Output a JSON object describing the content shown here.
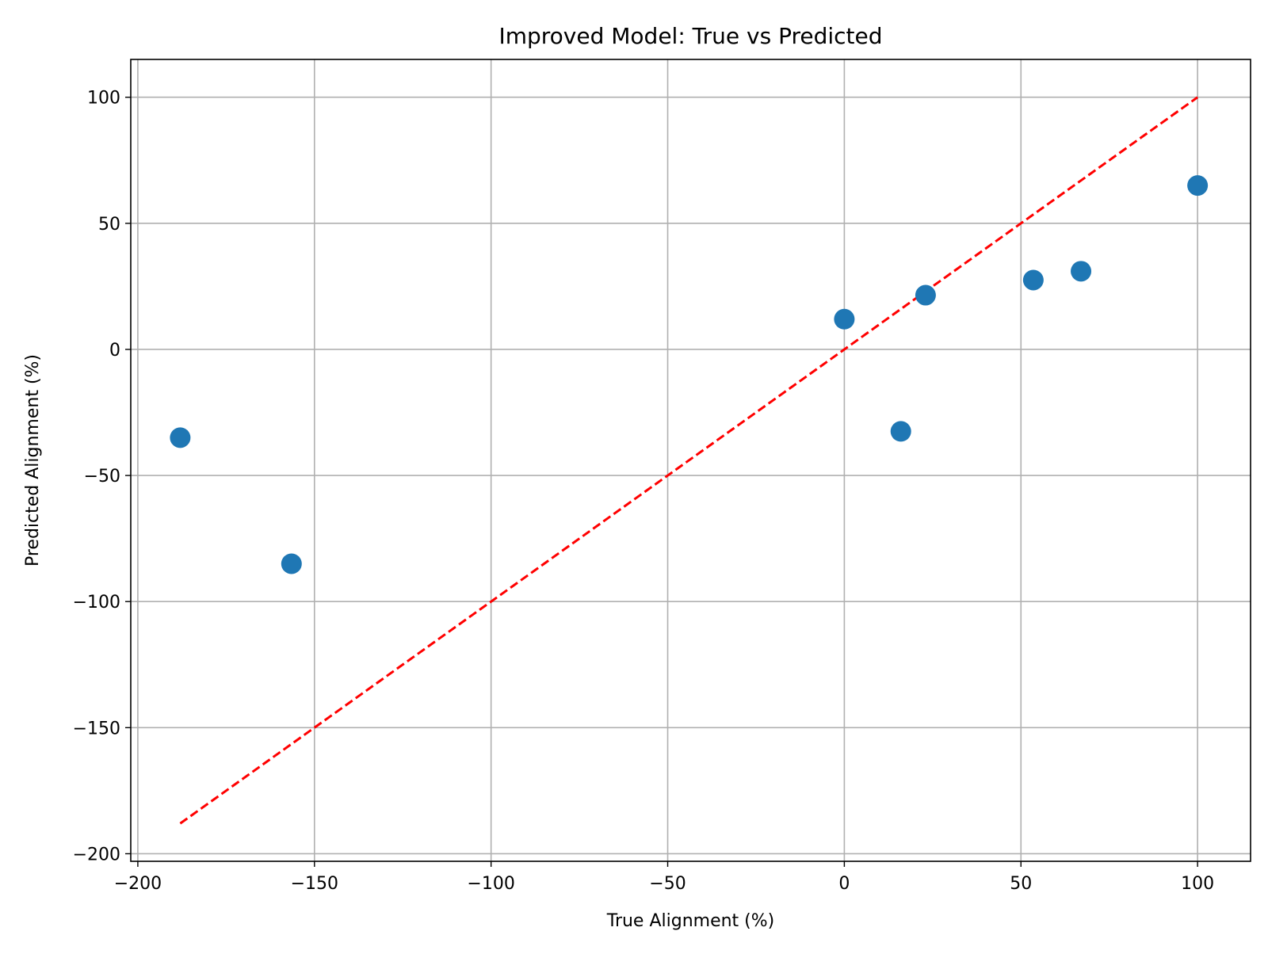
{
  "chart_data": {
    "type": "scatter",
    "title": "Improved Model: True vs Predicted",
    "xlabel": "True Alignment (%)",
    "ylabel": "Predicted Alignment (%)",
    "xlim": [
      -202,
      115
    ],
    "ylim": [
      -203,
      115
    ],
    "xticks": [
      -200,
      -150,
      -100,
      -50,
      0,
      50,
      100
    ],
    "yticks": [
      -200,
      -150,
      -100,
      -50,
      0,
      50,
      100
    ],
    "xtick_labels": [
      "−200",
      "−150",
      "−100",
      "−50",
      "0",
      "50",
      "100"
    ],
    "ytick_labels": [
      "−200",
      "−150",
      "−100",
      "−50",
      "0",
      "50",
      "100"
    ],
    "grid": true,
    "series": [
      {
        "color": "#1f77b4",
        "points": [
          {
            "x": -188,
            "y": -35
          },
          {
            "x": -156.5,
            "y": -85
          },
          {
            "x": 0,
            "y": 12
          },
          {
            "x": 16,
            "y": -32.5
          },
          {
            "x": 23,
            "y": 21.5
          },
          {
            "x": 53.5,
            "y": 27.5
          },
          {
            "x": 67,
            "y": 31
          },
          {
            "x": 100,
            "y": 65
          }
        ]
      }
    ],
    "reference_line": {
      "x": [
        -188,
        100
      ],
      "y": [
        -188,
        100
      ],
      "color": "#ff0000",
      "style": "dashed"
    }
  }
}
